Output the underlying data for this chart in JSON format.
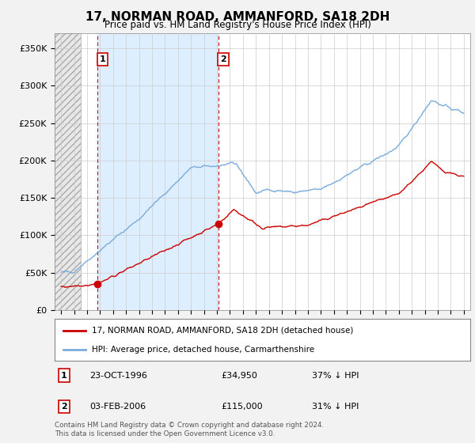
{
  "title": "17, NORMAN ROAD, AMMANFORD, SA18 2DH",
  "subtitle": "Price paid vs. HM Land Registry's House Price Index (HPI)",
  "red_label": "17, NORMAN ROAD, AMMANFORD, SA18 2DH (detached house)",
  "blue_label": "HPI: Average price, detached house, Carmarthenshire",
  "footnote": "Contains HM Land Registry data © Crown copyright and database right 2024.\nThis data is licensed under the Open Government Licence v3.0.",
  "sale1": {
    "date": "23-OCT-1996",
    "price": 34950,
    "note": "37% ↓ HPI"
  },
  "sale2": {
    "date": "03-FEB-2006",
    "price": 115000,
    "note": "31% ↓ HPI"
  },
  "sale1_x": 1996.81,
  "sale2_x": 2006.09,
  "ylim": [
    0,
    370000
  ],
  "xlim_left": 1993.5,
  "xlim_right": 2025.5,
  "background_color": "#f2f2f2",
  "plot_bg_color": "#ffffff",
  "blue_shade_color": "#ddeeff",
  "hatch_bg_color": "#e8e8e8",
  "red_color": "#cc0000",
  "blue_color": "#7aabdd",
  "grid_color": "#cccccc"
}
